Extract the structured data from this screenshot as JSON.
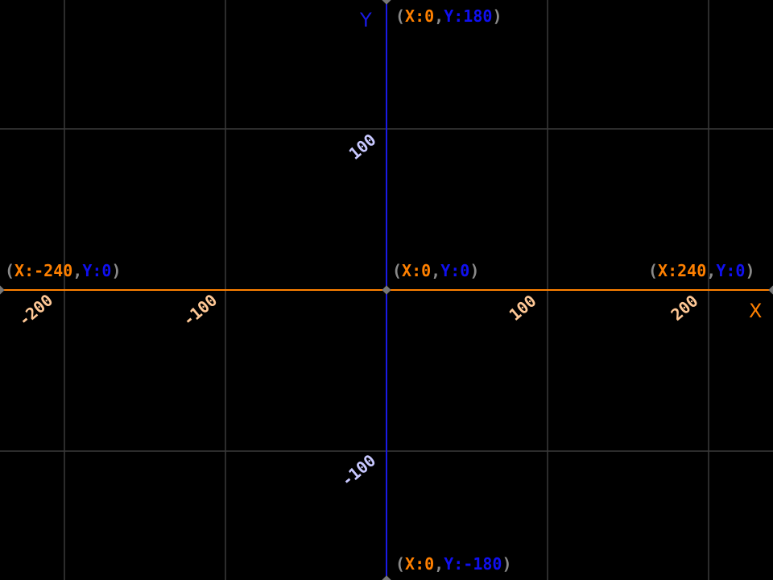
{
  "colors": {
    "background": "#000000",
    "grid": "#3a3a3a",
    "x_axis": "#ff8000",
    "y_axis": "#1a1ae6",
    "paren": "#8a8a8a",
    "x_text": "#ff8000",
    "y_text": "#1010f0",
    "x_tick_text": "#ffc896",
    "y_tick_text": "#c8c8ff",
    "point": "#777777"
  },
  "plane": {
    "x_range": [
      -240,
      240
    ],
    "y_range": [
      -180,
      180
    ],
    "grid_step": 100
  },
  "axes": {
    "x_name": "X",
    "y_name": "Y"
  },
  "x_ticks": [
    {
      "value": -200,
      "label": "-200"
    },
    {
      "value": -100,
      "label": "-100"
    },
    {
      "value": 100,
      "label": "100"
    },
    {
      "value": 200,
      "label": "200"
    }
  ],
  "y_ticks": [
    {
      "value": 100,
      "label": "100"
    },
    {
      "value": -100,
      "label": "-100"
    }
  ],
  "points": [
    {
      "id": "top",
      "x": 0,
      "y": 180,
      "open": "(",
      "x_part": "X:0",
      "comma": ",",
      "y_part": "Y:180",
      "close": ")"
    },
    {
      "id": "origin",
      "x": 0,
      "y": 0,
      "open": "(",
      "x_part": "X:0",
      "comma": ",",
      "y_part": "Y:0",
      "close": ")"
    },
    {
      "id": "left",
      "x": -240,
      "y": 0,
      "open": "(",
      "x_part": "X:-240",
      "comma": ",",
      "y_part": "Y:0",
      "close": ")"
    },
    {
      "id": "right",
      "x": 240,
      "y": 0,
      "open": "(",
      "x_part": "X:240",
      "comma": ",",
      "y_part": "Y:0",
      "close": ")"
    },
    {
      "id": "bottom",
      "x": 0,
      "y": -180,
      "open": "(",
      "x_part": "X:0",
      "comma": ",",
      "y_part": "Y:-180",
      "close": ")"
    }
  ]
}
